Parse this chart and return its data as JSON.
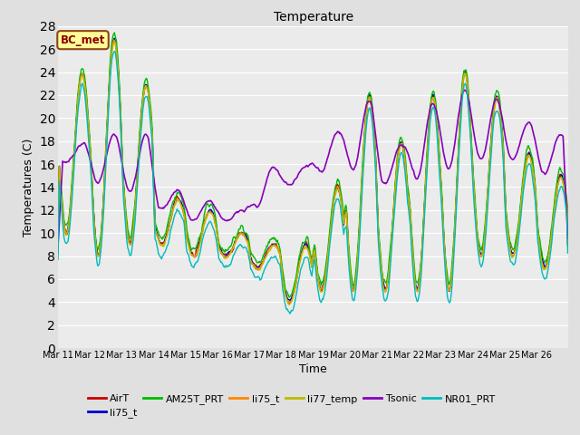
{
  "title": "Temperature",
  "xlabel": "Time",
  "ylabel": "Temperatures (C)",
  "annotation_text": "BC_met",
  "annotation_bg": "#FFFF99",
  "annotation_border": "#8B4513",
  "annotation_text_color": "#8B0000",
  "ylim": [
    0,
    28
  ],
  "yticks": [
    0,
    2,
    4,
    6,
    8,
    10,
    12,
    14,
    16,
    18,
    20,
    22,
    24,
    26,
    28
  ],
  "xtick_labels": [
    "Mar 11",
    "Mar 12",
    "Mar 13",
    "Mar 14",
    "Mar 15",
    "Mar 16",
    "Mar 17",
    "Mar 18",
    "Mar 19",
    "Mar 20",
    "Mar 21",
    "Mar 22",
    "Mar 23",
    "Mar 24",
    "Mar 25",
    "Mar 26"
  ],
  "series": [
    {
      "label": "AirT",
      "color": "#CC0000",
      "lw": 1.0
    },
    {
      "label": "li75_t",
      "color": "#0000CC",
      "lw": 1.0
    },
    {
      "label": "AM25T_PRT",
      "color": "#00BB00",
      "lw": 1.0
    },
    {
      "label": "li75_t",
      "color": "#FF8800",
      "lw": 1.0
    },
    {
      "label": "li77_temp",
      "color": "#BBBB00",
      "lw": 1.0
    },
    {
      "label": "Tsonic",
      "color": "#8800BB",
      "lw": 1.2
    },
    {
      "label": "NR01_PRT",
      "color": "#00BBBB",
      "lw": 1.0
    }
  ],
  "bg_color": "#E0E0E0",
  "plot_bg": "#EBEBEB",
  "grid_color": "#FFFFFF",
  "figsize": [
    6.4,
    4.8
  ],
  "dpi": 100
}
